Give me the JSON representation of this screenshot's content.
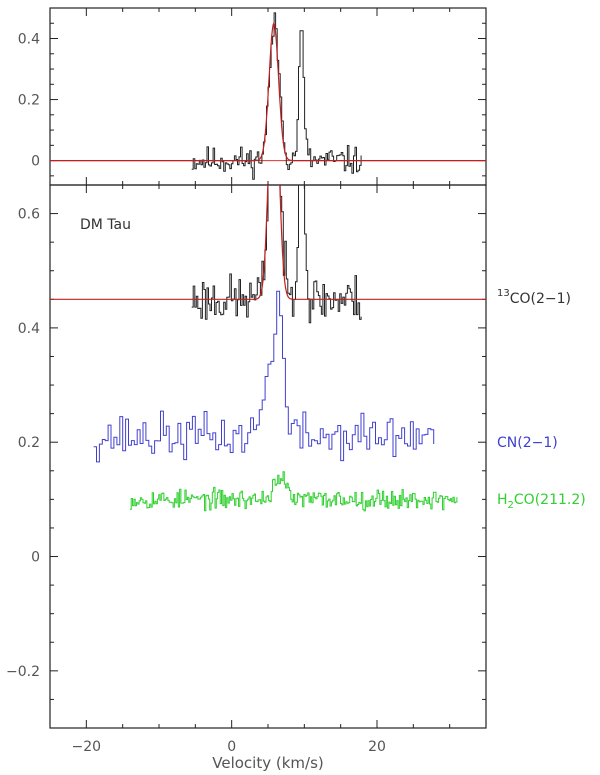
{
  "chart_data": [
    {
      "type": "line",
      "panel": "top",
      "xlim": [
        -25,
        35
      ],
      "ylim": [
        -0.08,
        0.5
      ],
      "yticks": [
        {
          "value": 0,
          "label": "0"
        },
        {
          "value": 0.2,
          "label": "0.2"
        },
        {
          "value": 0.4,
          "label": "0.4"
        }
      ],
      "baseline": {
        "y": 0,
        "color": "#e03030"
      },
      "series": [
        {
          "color": "#222222",
          "role": "spectrum",
          "x_start": -5.5,
          "x_end": 18,
          "step": 0.21,
          "noise": 0.032,
          "seed": 11,
          "base": 0,
          "peaks": [
            {
              "center": 5.8,
              "amp": 0.44,
              "width": 0.7
            },
            {
              "center": 9.5,
              "amp": 0.42,
              "width": 0.35
            }
          ]
        },
        {
          "color": "#c02020",
          "role": "fit",
          "x_start": -25,
          "x_end": 35,
          "step": 0.1,
          "base": 0,
          "peaks": [
            {
              "center": 5.8,
              "amp": 0.45,
              "width": 0.65
            }
          ]
        }
      ]
    },
    {
      "type": "line",
      "panel": "bottom",
      "xlim": [
        -25,
        35
      ],
      "ylim": [
        -0.3,
        0.65
      ],
      "xlabel": "Velocity (km/s)",
      "xticks": [
        {
          "value": -20,
          "label": "−20"
        },
        {
          "value": 0,
          "label": "0"
        },
        {
          "value": 20,
          "label": "20"
        }
      ],
      "yticks": [
        {
          "value": -0.2,
          "label": "−0.2"
        },
        {
          "value": 0,
          "label": "0"
        },
        {
          "value": 0.2,
          "label": "0.2"
        },
        {
          "value": 0.4,
          "label": "0.4"
        },
        {
          "value": 0.6,
          "label": "0.6"
        }
      ],
      "annotation": "DM Tau",
      "series": [
        {
          "name": "13CO(2−1)",
          "label_sup": "13",
          "label_main": "CO(2−1)",
          "color": "#222222",
          "x_start": -5.5,
          "x_end": 18,
          "step": 0.21,
          "noise": 0.03,
          "seed": 23,
          "base": 0.45,
          "peaks": [
            {
              "center": 5.8,
              "amp": 0.44,
              "width": 0.7
            },
            {
              "center": 9.5,
              "amp": 0.42,
              "width": 0.35
            }
          ]
        },
        {
          "name": "13CO fit",
          "color": "#c02020",
          "role": "fit",
          "x_start": -25,
          "x_end": 35,
          "step": 0.1,
          "base": 0.45,
          "peaks": [
            {
              "center": 5.8,
              "amp": 0.45,
              "width": 0.65
            }
          ]
        },
        {
          "name": "CN(2−1)",
          "label_main": "CN(2−1)",
          "color": "#4040d0",
          "x_start": -19,
          "x_end": 28,
          "step": 0.4,
          "noise": 0.028,
          "seed": 37,
          "base": 0.21,
          "peaks": [
            {
              "center": 5.5,
              "amp": 0.12,
              "width": 1.2
            },
            {
              "center": 6.3,
              "amp": 0.16,
              "width": 0.5
            }
          ]
        },
        {
          "name": "H2CO(211.2)",
          "label_pre": "H",
          "label_sub": "2",
          "label_main": "CO(211.2)",
          "color": "#30d030",
          "x_start": -14,
          "x_end": 31,
          "step": 0.18,
          "noise": 0.012,
          "seed": 53,
          "base": 0.1,
          "peaks": [
            {
              "center": 6.5,
              "amp": 0.04,
              "width": 0.8
            }
          ]
        }
      ]
    }
  ]
}
